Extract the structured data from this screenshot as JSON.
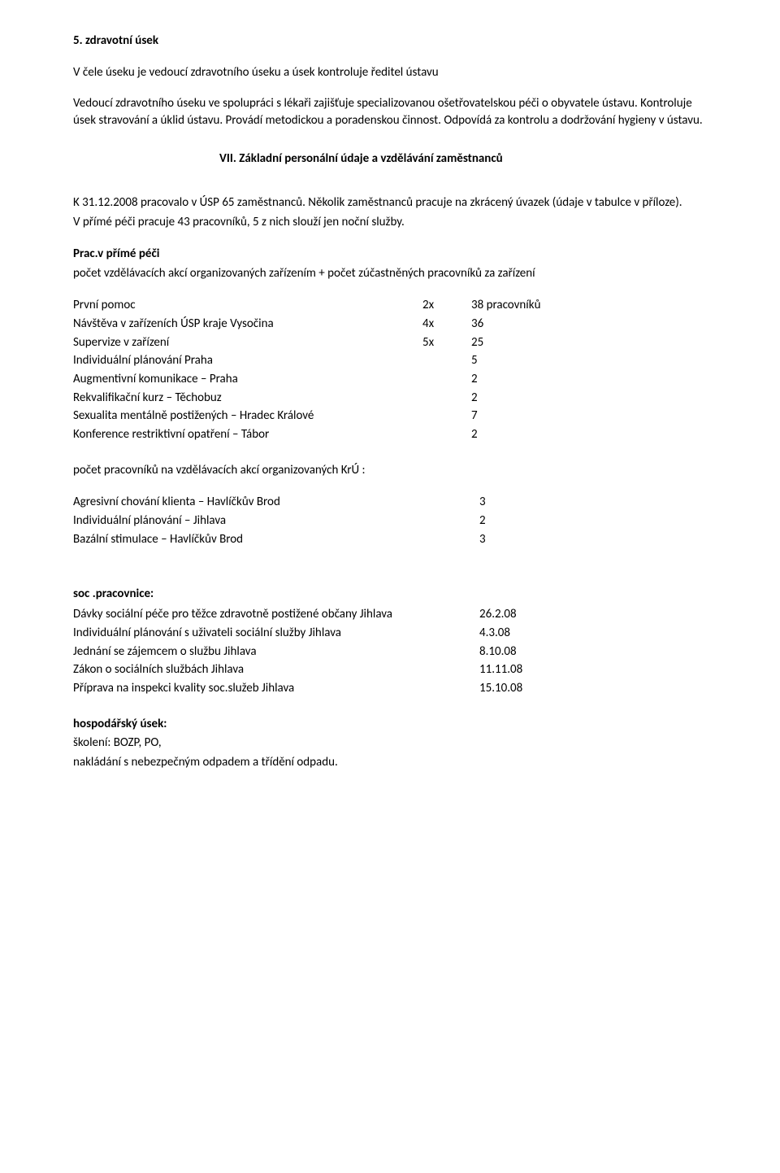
{
  "section5": {
    "title": "5.  zdravotní úsek",
    "para1": "V čele úseku je vedoucí zdravotního úseku a úsek kontroluje ředitel ústavu",
    "para2": "Vedoucí zdravotního úseku ve spolupráci s lékaři zajišťuje specializovanou ošetřovatelskou péči o obyvatele ústavu. Kontroluje úsek stravování a úklid ústavu. Provádí metodickou a poradenskou činnost. Odpovídá za kontrolu a dodržování hygieny v ústavu."
  },
  "vii": {
    "title": "VII.  Základní personální údaje a vzdělávání zaměstnanců",
    "para": "K 31.12.2008 pracovalo v ÚSP 65 zaměstnanců. Několik zaměstnanců pracuje na zkrácený úvazek (údaje v tabulce v příloze).",
    "para2": "V přímé péči pracuje 43 pracovníků, 5  z nich slouží jen noční služby."
  },
  "prime": {
    "head_bold": "Prac.v přímé péči",
    "head_rest": "počet vzdělávacích akcí organizovaných zařízením + počet zúčastněných pracovníků za zařízení",
    "rows": [
      {
        "label": "První pomoc",
        "a": "2x",
        "b": "38 pracovníků"
      },
      {
        "label": "Návštěva v zařízeních ÚSP kraje Vysočina",
        "a": "4x",
        "b": "36"
      },
      {
        "label": "Supervize v zařízení",
        "a": "5x",
        "b": "25"
      },
      {
        "label": "Individuální plánování  Praha",
        "a": "",
        "b": "5"
      },
      {
        "label": "Augmentivní komunikace – Praha",
        "a": "",
        "b": "2"
      },
      {
        "label": "Rekvalifikační kurz – Těchobuz",
        "a": "",
        "b": "2"
      },
      {
        "label": "Sexualita mentálně postižených – Hradec Králové",
        "a": "",
        "b": "7"
      },
      {
        "label": "Konference restriktivní opatření – Tábor",
        "a": "",
        "b": "2"
      }
    ]
  },
  "kru": {
    "head": "počet pracovníků na vzdělávacích akcí organizovaných KrÚ :",
    "rows": [
      {
        "label": "Agresivní chování klienta – Havlíčkův Brod",
        "b": "3"
      },
      {
        "label": "Individuální plánování – Jihlava",
        "b": "2"
      },
      {
        "label": "Bazální stimulace – Havlíčkův Brod",
        "b": "3"
      }
    ]
  },
  "soc": {
    "head": " soc .pracovnice:",
    "rows": [
      {
        "label": "Dávky sociální péče pro těžce zdravotně postižené občany Jihlava",
        "b": "26.2.08"
      },
      {
        "label": "Individuální plánování s uživateli sociální služby Jihlava",
        "b": " 4.3.08"
      },
      {
        "label": "Jednání se zájemcem o službu Jihlava",
        "b": "8.10.08"
      },
      {
        "label": "Zákon o sociálních službách Jihlava",
        "b": "11.11.08"
      },
      {
        "label": "Příprava na inspekci kvality soc.služeb Jihlava",
        "b": "15.10.08"
      }
    ]
  },
  "hosp": {
    "head": "hospodářský úsek:",
    "line1": "školení: BOZP, PO,",
    "line2": "nakládání s nebezpečným odpadem a třídění odpadu."
  }
}
